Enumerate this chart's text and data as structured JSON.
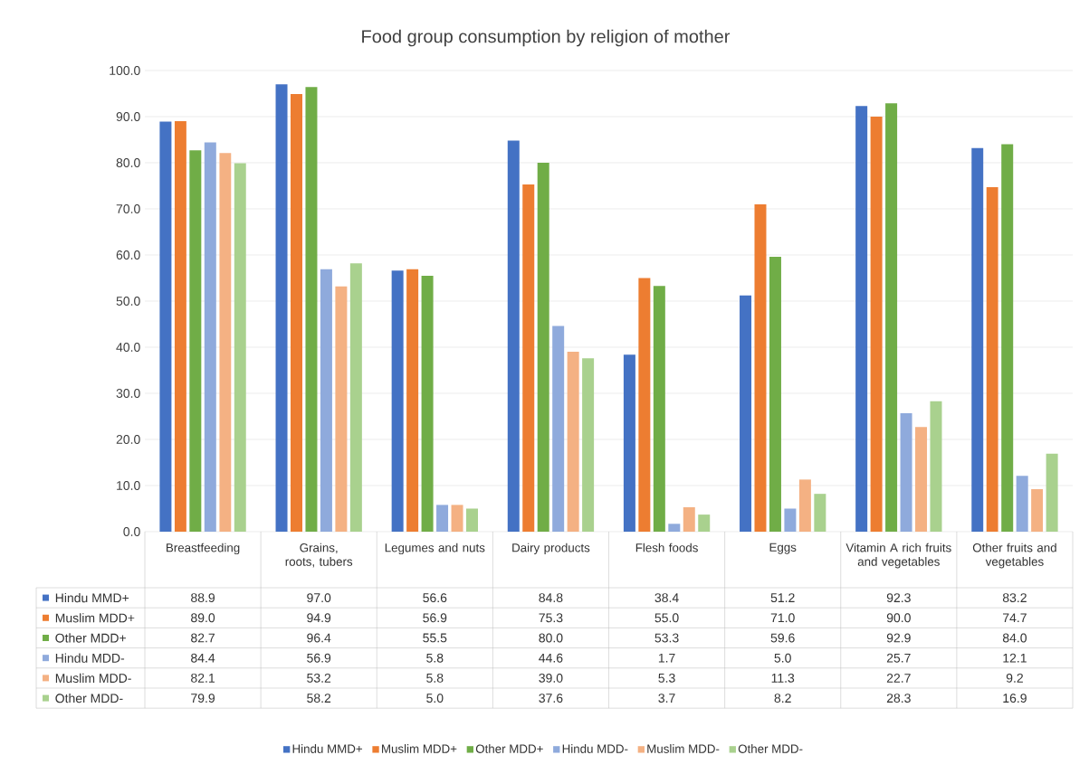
{
  "chart_data": {
    "type": "bar",
    "title": "Food group consumption by religion of mother",
    "categories": [
      "Breastfeeding",
      "Grains, roots, tubers",
      "Legumes and nuts",
      "Dairy products",
      "Flesh foods",
      "Eggs",
      "Vitamin A rich fruits and vegetables",
      "Other fruits and vegetables"
    ],
    "series": [
      {
        "name": "Hindu MMD+",
        "color": "#4472c4",
        "values": [
          88.9,
          97.0,
          56.6,
          84.8,
          38.4,
          51.2,
          92.3,
          83.2
        ],
        "value_labels": [
          "88.9",
          "97.0",
          "56.6",
          "84.8",
          "38.4",
          "51.2",
          "92.3",
          "83.2"
        ]
      },
      {
        "name": "Muslim MDD+",
        "color": "#ed7d31",
        "values": [
          89.0,
          94.9,
          56.9,
          75.3,
          55.0,
          71.0,
          90.0,
          74.7
        ],
        "value_labels": [
          "89.0",
          "94.9",
          "56.9",
          "75.3",
          "55.0",
          "71.0",
          "90.0",
          "74.7"
        ]
      },
      {
        "name": "Other MDD+",
        "color": "#70ad47",
        "values": [
          82.7,
          96.4,
          55.5,
          80.0,
          53.3,
          59.6,
          92.9,
          84.0
        ],
        "value_labels": [
          "82.7",
          "96.4",
          "55.5",
          "80.0",
          "53.3",
          "59.6",
          "92.9",
          "84.0"
        ]
      },
      {
        "name": "Hindu MDD-",
        "color": "#8faadc",
        "values": [
          84.4,
          56.9,
          5.8,
          44.6,
          1.7,
          5.0,
          25.7,
          12.1
        ],
        "value_labels": [
          "84.4",
          "56.9",
          "5.8",
          "44.6",
          "1.7",
          "5.0",
          "25.7",
          "12.1"
        ]
      },
      {
        "name": "Muslim MDD-",
        "color": "#f4b183",
        "values": [
          82.1,
          53.2,
          5.8,
          39.0,
          5.3,
          11.3,
          22.7,
          9.2
        ],
        "value_labels": [
          "82.1",
          "53.2",
          "5.8",
          "39.0",
          "5.3",
          "11.3",
          "22.7",
          "9.2"
        ]
      },
      {
        "name": "Other MDD-",
        "color": "#a9d18e",
        "values": [
          79.9,
          58.2,
          5.0,
          37.6,
          3.7,
          8.2,
          28.3,
          16.9
        ],
        "value_labels": [
          "79.9",
          "58.2",
          "5.0",
          "37.6",
          "3.7",
          "8.2",
          "28.3",
          "16.9"
        ]
      }
    ],
    "ylim": [
      0,
      100
    ],
    "yticks": [
      {
        "value": 0,
        "label": "0.0"
      },
      {
        "value": 10,
        "label": "10.0"
      },
      {
        "value": 20,
        "label": "20.0"
      },
      {
        "value": 30,
        "label": "30.0"
      },
      {
        "value": 40,
        "label": "40.0"
      },
      {
        "value": 50,
        "label": "50.0"
      },
      {
        "value": 60,
        "label": "60.0"
      },
      {
        "value": 70,
        "label": "70.0"
      },
      {
        "value": 80,
        "label": "80.0"
      },
      {
        "value": 90,
        "label": "90.0"
      },
      {
        "value": 100,
        "label": "100.0"
      }
    ],
    "grid": "y",
    "legend": "bottom"
  }
}
